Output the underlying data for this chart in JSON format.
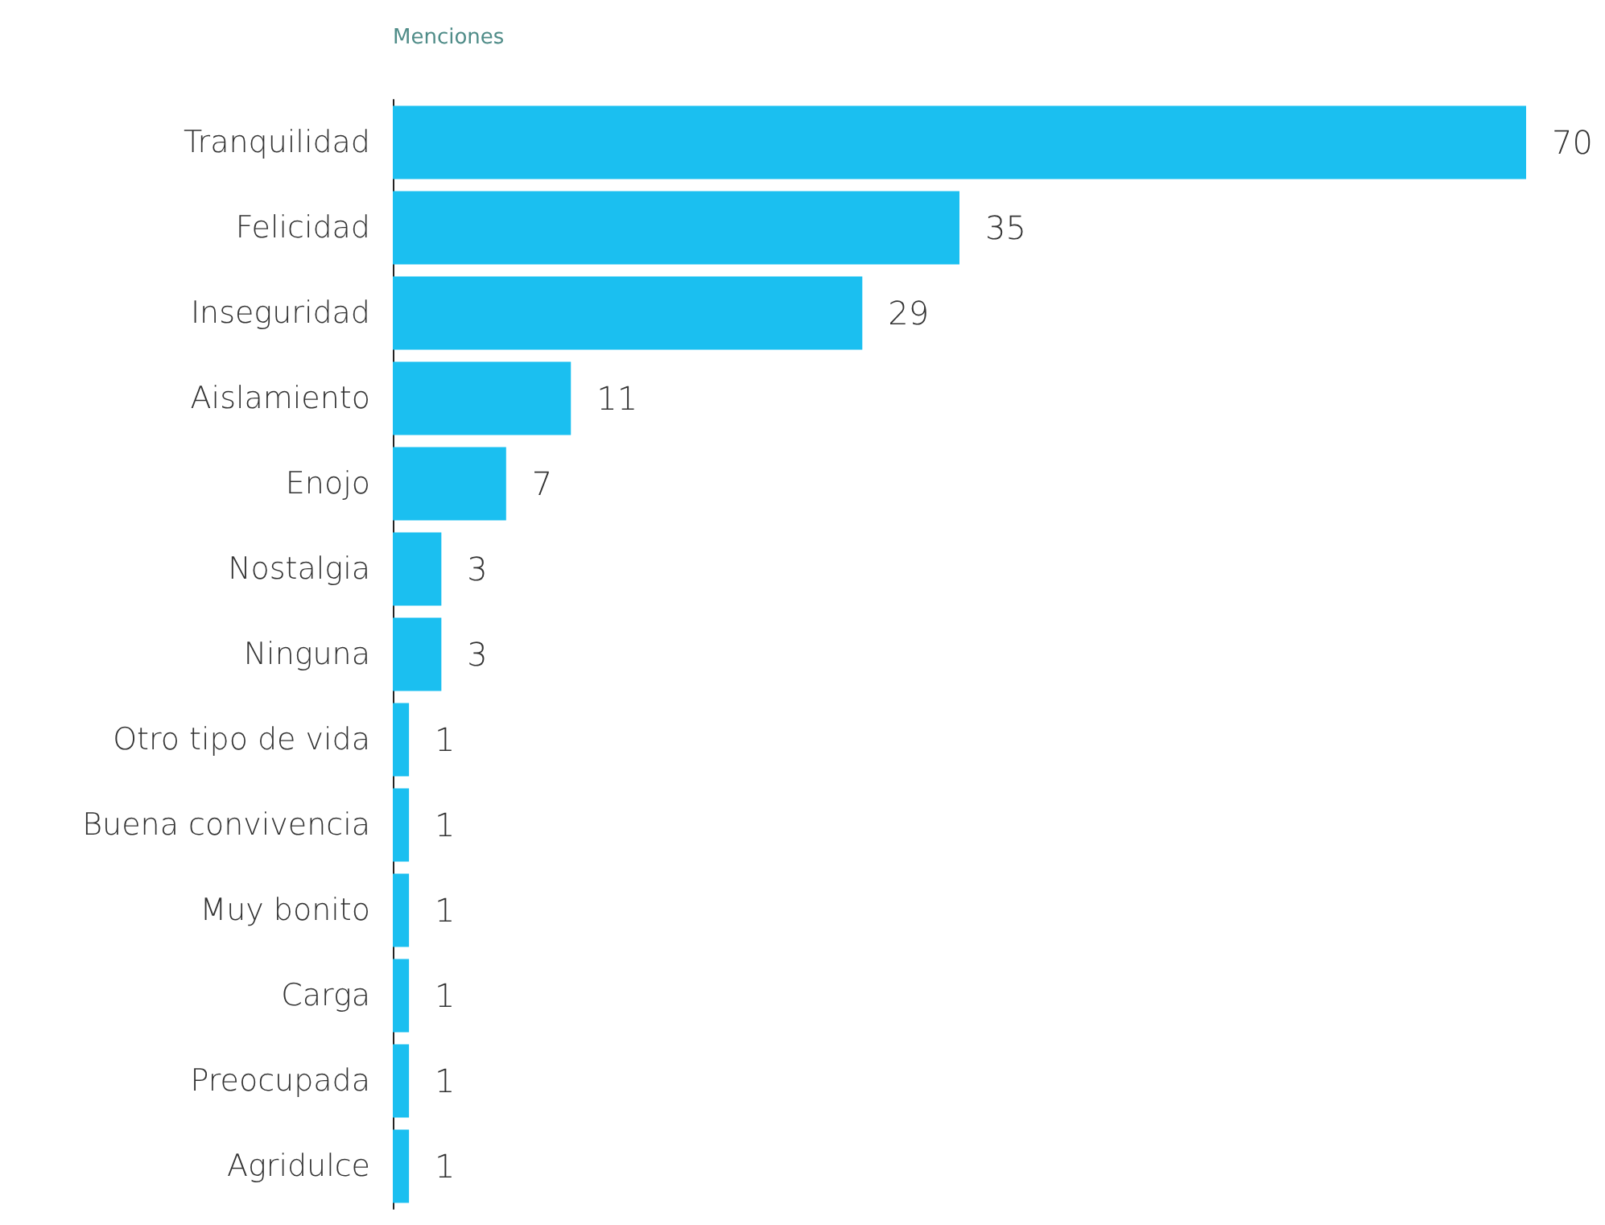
{
  "chart_data": {
    "type": "bar",
    "orientation": "horizontal",
    "tick_labels": "y",
    "xlabel": "Menciones",
    "categories": [
      "Tranquilidad",
      "Felicidad",
      "Inseguridad",
      "Aislamiento",
      "Enojo",
      "Nostalgia",
      "Ninguna",
      "Otro tipo de vida",
      "Buena convivencia",
      "Muy bonito",
      "Carga",
      "Preocupada",
      "Agridulce"
    ],
    "values": [
      70,
      35,
      29,
      11,
      7,
      3,
      3,
      1,
      1,
      1,
      1,
      1,
      1
    ],
    "color": "#1bbff0",
    "data_labels": true
  }
}
